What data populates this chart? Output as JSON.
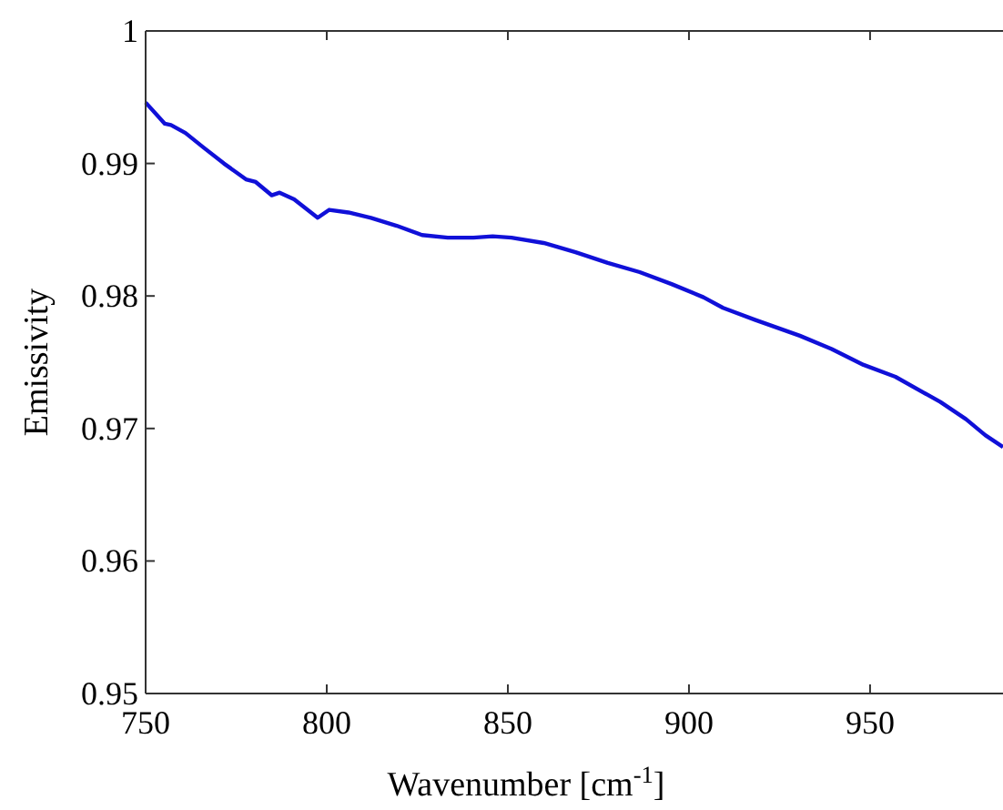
{
  "chart_data": {
    "type": "line",
    "xlabel": "Wavenumber [cm$^{-1}$]",
    "ylabel": "Emissivity",
    "xlim": [
      750,
      986.7
    ],
    "ylim": [
      0.95,
      1
    ],
    "xticks": [
      750,
      800,
      850,
      900,
      950
    ],
    "yticks": [
      0.95,
      0.96,
      0.97,
      0.98,
      0.99,
      1
    ],
    "line_style": "solid",
    "series": [
      {
        "color": "#1010d8",
        "x": [
          750,
          755.3,
          757,
          761,
          766,
          771.6,
          777.7,
          780.4,
          784.8,
          787,
          791,
          797.5,
          800.7,
          806,
          812.2,
          819.3,
          826.3,
          833.4,
          840.5,
          845.8,
          851,
          859.9,
          868.7,
          877.6,
          886.4,
          895.2,
          904,
          909.4,
          918.2,
          930.6,
          939.4,
          948.2,
          957,
          969.4,
          976.5,
          981.8,
          986.7
        ],
        "values": [
          0.9946,
          0.993,
          0.9929,
          0.9923,
          0.9912,
          0.99,
          0.9888,
          0.9886,
          0.9876,
          0.9878,
          0.9873,
          0.9859,
          0.9865,
          0.9863,
          0.9859,
          0.9853,
          0.9846,
          0.9844,
          0.9844,
          0.9845,
          0.9844,
          0.984,
          0.9833,
          0.9825,
          0.9818,
          0.9809,
          0.9799,
          0.9791,
          0.9782,
          0.977,
          0.976,
          0.9748,
          0.9739,
          0.972,
          0.9707,
          0.9695,
          0.9686
        ]
      }
    ]
  }
}
